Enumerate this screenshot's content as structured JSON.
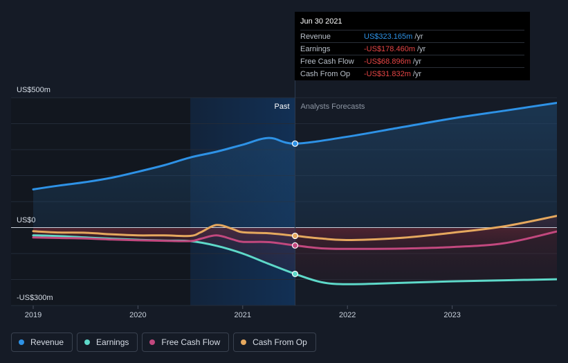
{
  "chart_data": {
    "type": "line",
    "y_unit_labels": {
      "top": "US$500m",
      "zero": "US$0",
      "bottom": "-US$300m"
    },
    "ylim": [
      -300,
      500
    ],
    "xlim": [
      2019.0,
      2024.0
    ],
    "x_ticks": [
      "2019",
      "2020",
      "2021",
      "2022",
      "2023"
    ],
    "past_label": "Past",
    "forecast_label": "Analysts Forecasts",
    "highlight_range": [
      2020.5,
      2021.5
    ],
    "divider_x": 2021.5,
    "grid": true,
    "series": [
      {
        "name": "Revenue",
        "color": "#2e92e6",
        "x": [
          2019.0,
          2019.25,
          2019.5,
          2019.75,
          2020.0,
          2020.25,
          2020.5,
          2020.75,
          2021.0,
          2021.25,
          2021.5,
          2022.0,
          2022.5,
          2023.0,
          2023.5,
          2024.0
        ],
        "y": [
          147,
          162,
          175,
          192,
          215,
          240,
          270,
          292,
          319,
          345,
          323.165,
          350,
          385,
          420,
          450,
          480
        ]
      },
      {
        "name": "Earnings",
        "color": "#5ed9c9",
        "x": [
          2019.0,
          2019.25,
          2019.5,
          2019.75,
          2020.0,
          2020.25,
          2020.5,
          2020.75,
          2021.0,
          2021.25,
          2021.5,
          2021.75,
          2022.0,
          2022.5,
          2023.0,
          2023.5,
          2024.0
        ],
        "y": [
          -30,
          -33,
          -38,
          -43,
          -47,
          -50,
          -52,
          -70,
          -100,
          -140,
          -178.46,
          -210,
          -218,
          -213,
          -207,
          -203,
          -199
        ]
      },
      {
        "name": "Free Cash Flow",
        "color": "#c2487e",
        "x": [
          2019.0,
          2019.25,
          2019.5,
          2019.75,
          2020.0,
          2020.25,
          2020.5,
          2020.6,
          2020.75,
          2020.9,
          2021.0,
          2021.25,
          2021.5,
          2021.75,
          2022.0,
          2022.5,
          2023.0,
          2023.5,
          2024.0
        ],
        "y": [
          -38,
          -40,
          -42,
          -46,
          -49,
          -51,
          -52,
          -43,
          -30,
          -45,
          -55,
          -56,
          -68.896,
          -80,
          -82,
          -81,
          -75,
          -60,
          -15
        ]
      },
      {
        "name": "Cash From Op",
        "color": "#e5a85e",
        "x": [
          2019.0,
          2019.25,
          2019.5,
          2019.75,
          2020.0,
          2020.25,
          2020.5,
          2020.6,
          2020.75,
          2020.9,
          2021.0,
          2021.25,
          2021.5,
          2021.75,
          2022.0,
          2022.5,
          2023.0,
          2023.5,
          2024.0
        ],
        "y": [
          -14,
          -19,
          -20,
          -26,
          -30,
          -30,
          -32,
          -18,
          10,
          -5,
          -18,
          -22,
          -31.832,
          -42,
          -48,
          -40,
          -20,
          5,
          45
        ]
      }
    ],
    "highlight_points": [
      {
        "series": "Revenue",
        "x": 2021.5,
        "y": 323.165
      },
      {
        "series": "Earnings",
        "x": 2021.5,
        "y": -178.46
      },
      {
        "series": "Free Cash Flow",
        "x": 2021.5,
        "y": -68.896
      },
      {
        "series": "Cash From Op",
        "x": 2021.5,
        "y": -31.832
      }
    ]
  },
  "tooltip": {
    "date": "Jun 30 2021",
    "rows": [
      {
        "name": "Revenue",
        "value": "US$323.165m",
        "unit": "/yr",
        "color": "#2e92e6"
      },
      {
        "name": "Earnings",
        "value": "-US$178.460m",
        "unit": "/yr",
        "color": "#e64545"
      },
      {
        "name": "Free Cash Flow",
        "value": "-US$68.896m",
        "unit": "/yr",
        "color": "#e64545"
      },
      {
        "name": "Cash From Op",
        "value": "-US$31.832m",
        "unit": "/yr",
        "color": "#e64545"
      }
    ]
  },
  "legend": [
    {
      "label": "Revenue",
      "color": "#2e92e6"
    },
    {
      "label": "Earnings",
      "color": "#5ed9c9"
    },
    {
      "label": "Free Cash Flow",
      "color": "#c2487e"
    },
    {
      "label": "Cash From Op",
      "color": "#e5a85e"
    }
  ]
}
